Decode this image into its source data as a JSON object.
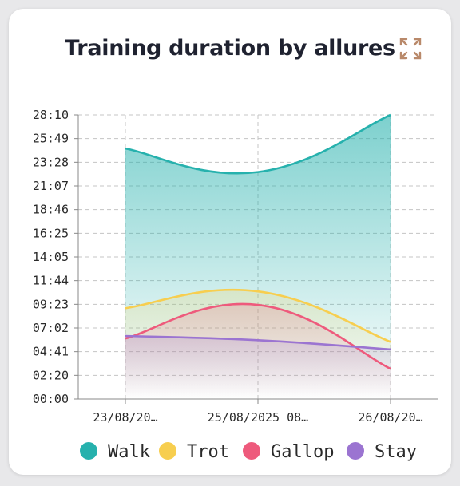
{
  "header": {
    "title": "Training duration by allures",
    "expand_icon": "expand-icon"
  },
  "chart_data": {
    "type": "area",
    "title": "Training duration by allures",
    "x": [
      "23/08/20…",
      "25/08/2025 08…",
      "26/08/20…"
    ],
    "y_ticks": [
      "00:00",
      "02:20",
      "04:41",
      "07:02",
      "09:23",
      "11:44",
      "14:05",
      "16:25",
      "18:46",
      "21:07",
      "23:28",
      "25:49",
      "28:10"
    ],
    "ylim_seconds": [
      0,
      1690
    ],
    "grid": true,
    "legend_position": "bottom",
    "series": [
      {
        "name": "Walk",
        "color": "#26b1ad",
        "values_seconds": [
          1490,
          1350,
          1690
        ],
        "values": [
          "24:50",
          "22:30",
          "28:10"
        ]
      },
      {
        "name": "Trot",
        "color": "#f7ce4f",
        "values_seconds": [
          540,
          640,
          340
        ],
        "values": [
          "09:00",
          "10:40",
          "05:40"
        ]
      },
      {
        "name": "Gallop",
        "color": "#ee5a7c",
        "values_seconds": [
          360,
          560,
          180
        ],
        "values": [
          "06:00",
          "09:20",
          "03:00"
        ]
      },
      {
        "name": "Stay",
        "color": "#9b74d1",
        "values_seconds": [
          375,
          350,
          295
        ],
        "values": [
          "06:15",
          "05:50",
          "04:55"
        ]
      }
    ]
  }
}
